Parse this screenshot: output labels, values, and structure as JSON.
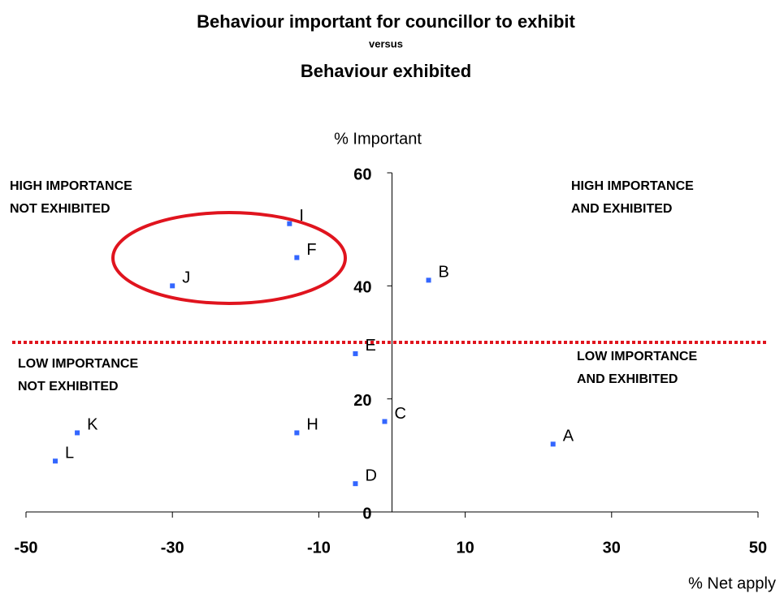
{
  "chart_data": {
    "type": "scatter",
    "title": "Behaviour important for councillor to exhibit",
    "subtitle": "versus",
    "title2": "Behaviour exhibited",
    "xlabel": "% Net apply",
    "ylabel": "% Important",
    "xlim": [
      -50,
      50
    ],
    "xticks": [
      -50,
      -30,
      -10,
      10,
      30,
      50
    ],
    "ylim": [
      0,
      60
    ],
    "yticks": [
      0,
      20,
      40,
      60
    ],
    "color": "#3366ff",
    "point_labels": [
      "I",
      "F",
      "J",
      "B",
      "E",
      "C",
      "H",
      "A",
      "K",
      "L",
      "D"
    ],
    "x": [
      -14,
      -13,
      -30,
      5,
      -5,
      -1,
      -13,
      22,
      -43,
      -46,
      -5
    ],
    "values": [
      51,
      45,
      40,
      41,
      28,
      16,
      14,
      12,
      14,
      9,
      5
    ],
    "reference_line": {
      "value": 30,
      "color": "#e0141e"
    },
    "annotations": [
      [
        "HIGH IMPORTANCE",
        "NOT EXHIBITED"
      ],
      [
        "HIGH IMPORTANCE",
        "AND EXHIBITED"
      ],
      [
        "LOW IMPORTANCE",
        "NOT EXHIBITED"
      ],
      [
        "LOW IMPORTANCE",
        "AND EXHIBITED"
      ]
    ]
  }
}
